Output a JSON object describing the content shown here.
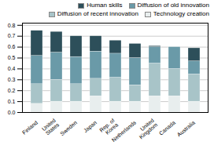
{
  "chart_data": {
    "type": "bar",
    "stacked": true,
    "categories": [
      "Finland",
      "United\nStates",
      "Sweden",
      "Japan",
      "Rep. of\nKorea",
      "Netherlands",
      "United\nKingdom",
      "Canada",
      "Australia"
    ],
    "series": [
      {
        "name": "Technology creation",
        "color": "#e8eeee",
        "values": [
          0.08,
          0.1,
          0.1,
          0.15,
          0.1,
          0.1,
          0.15,
          0.15,
          0.1
        ]
      },
      {
        "name": "Diffusion of recent innovation",
        "color": "#a8c4c8",
        "values": [
          0.18,
          0.2,
          0.16,
          0.16,
          0.22,
          0.15,
          0.3,
          0.25,
          0.25
        ]
      },
      {
        "name": "Diffusion of old innovation",
        "color": "#6a9aa8",
        "values": [
          0.26,
          0.25,
          0.25,
          0.25,
          0.22,
          0.25,
          0.15,
          0.2,
          0.12
        ]
      },
      {
        "name": "Human skills",
        "color": "#2d4f5a",
        "values": [
          0.23,
          0.19,
          0.19,
          0.14,
          0.12,
          0.13,
          0.01,
          0.0,
          0.12
        ]
      }
    ],
    "ylim": [
      0.0,
      0.82
    ],
    "yticks": [
      {
        "value": 0.0,
        "label": "0.0"
      },
      0.1,
      0.2,
      0.3,
      0.4,
      0.5,
      0.6,
      0.7,
      0.8
    ],
    "grid": true,
    "legend": "upper right"
  }
}
